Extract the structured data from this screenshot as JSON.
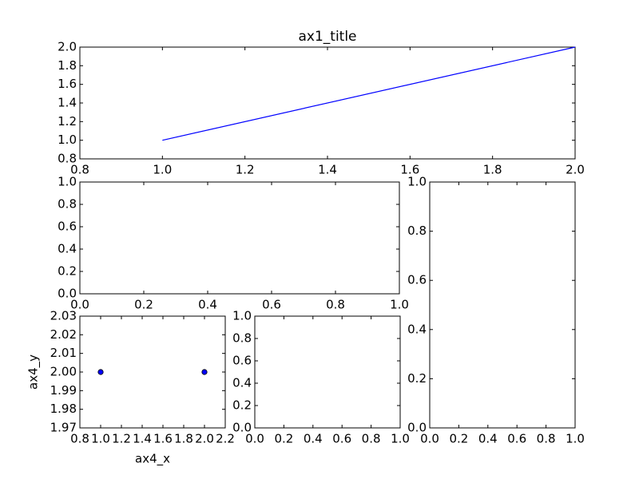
{
  "chart_data": [
    {
      "type": "line",
      "title": "ax1_title",
      "series": [
        {
          "color": "#0000ff",
          "x": [
            1,
            2
          ],
          "values": [
            1,
            2
          ]
        }
      ],
      "xlim": [
        0.8,
        2.0
      ],
      "xticks": [
        0.8,
        {
          "value": 1.0,
          "label": "1.0"
        },
        1.2,
        1.4,
        1.6,
        1.8,
        {
          "value": 2.0,
          "label": "2.0"
        }
      ],
      "ylim": [
        0.8,
        2.0
      ],
      "yticks": [
        0.8,
        {
          "value": 1.0,
          "label": "1.0"
        },
        1.2,
        1.4,
        1.6,
        1.8,
        {
          "value": 2.0,
          "label": "2.0"
        }
      ]
    },
    {
      "type": "line",
      "xlim": [
        0,
        1
      ],
      "xticks": [
        {
          "value": 0,
          "label": "0.0"
        },
        0.2,
        0.4,
        0.6,
        0.8,
        {
          "value": 1,
          "label": "1.0"
        }
      ],
      "ylim": [
        0,
        1
      ],
      "yticks": [
        {
          "value": 0,
          "label": "0.0"
        },
        0.2,
        0.4,
        0.6,
        0.8,
        {
          "value": 1,
          "label": "1.0"
        }
      ]
    },
    {
      "type": "line",
      "xlim": [
        0,
        1
      ],
      "xticks": [
        {
          "value": 0,
          "label": "0.0"
        },
        0.2,
        0.4,
        0.6,
        0.8,
        {
          "value": 1,
          "label": "1.0"
        }
      ],
      "ylim": [
        0,
        1
      ],
      "yticks": [
        {
          "value": 0,
          "label": "0.0"
        },
        0.2,
        0.4,
        0.6,
        0.8,
        {
          "value": 1,
          "label": "1.0"
        }
      ]
    },
    {
      "type": "scatter",
      "x_label": "ax4_x",
      "y_label": "ax4_y",
      "series": [
        {
          "color": "#0000ff",
          "x": [
            1,
            2
          ],
          "values": [
            2,
            2
          ]
        }
      ],
      "xlim": [
        0.8,
        2.2
      ],
      "xticks": [
        0.8,
        {
          "value": 1.0,
          "label": "1.0"
        },
        1.2,
        1.4,
        1.6,
        1.8,
        {
          "value": 2.0,
          "label": "2.0"
        },
        2.2
      ],
      "ylim": [
        1.97,
        2.03
      ],
      "yticks": [
        1.97,
        1.98,
        1.99,
        {
          "value": 2.0,
          "label": "2.00"
        },
        2.01,
        2.02,
        2.03
      ]
    },
    {
      "type": "line",
      "xlim": [
        0,
        1
      ],
      "xticks": [
        {
          "value": 0,
          "label": "0.0"
        },
        0.2,
        0.4,
        0.6,
        0.8,
        {
          "value": 1,
          "label": "1.0"
        }
      ],
      "ylim": [
        0,
        1
      ],
      "yticks": [
        {
          "value": 0,
          "label": "0.0"
        },
        0.2,
        0.4,
        0.6,
        0.8,
        {
          "value": 1,
          "label": "1.0"
        }
      ]
    }
  ]
}
